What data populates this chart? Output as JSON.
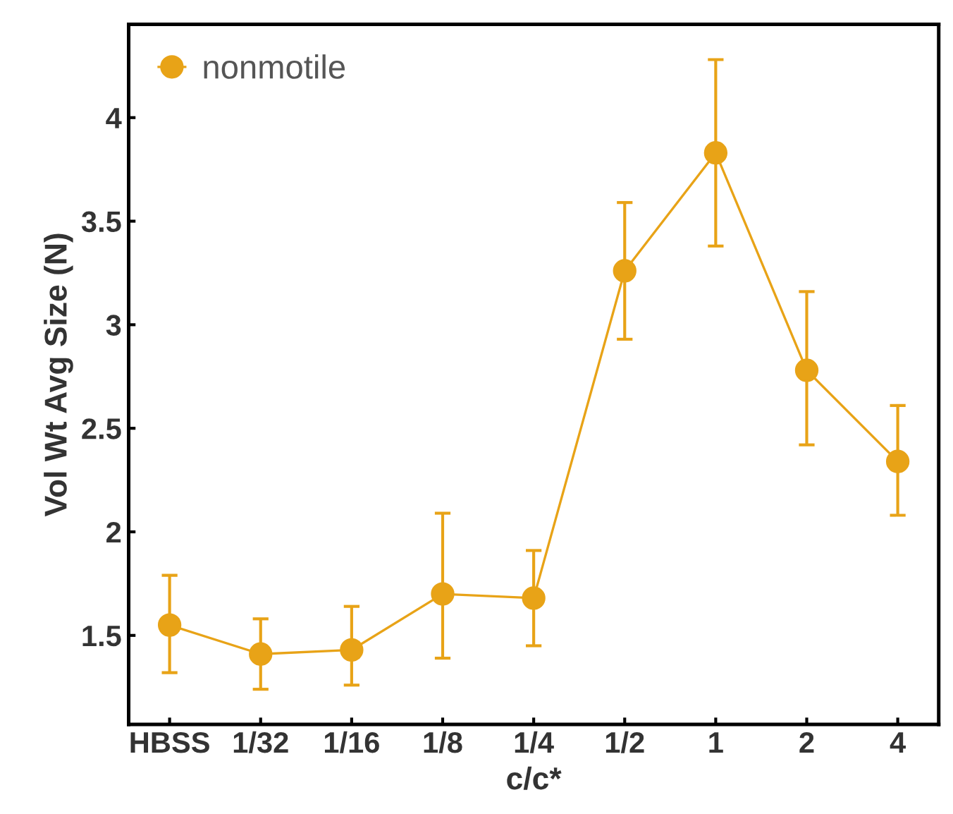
{
  "chart_data": {
    "type": "line",
    "xlabel": "c/c*",
    "ylabel": "Vol Wt Avg Size (N)",
    "categories": [
      "HBSS",
      "1/32",
      "1/16",
      "1/8",
      "1/4",
      "1/2",
      "1",
      "2",
      "4"
    ],
    "series": [
      {
        "name": "nonmotile",
        "color": "#e8a317",
        "values": [
          1.55,
          1.41,
          1.43,
          1.7,
          1.68,
          3.26,
          3.83,
          2.78,
          2.34
        ],
        "errors": [
          [
            1.32,
            1.79
          ],
          [
            1.24,
            1.58
          ],
          [
            1.26,
            1.64
          ],
          [
            1.39,
            2.09
          ],
          [
            1.45,
            1.91
          ],
          [
            2.93,
            3.59
          ],
          [
            3.38,
            4.28
          ],
          [
            2.42,
            3.16
          ],
          [
            2.08,
            2.61
          ]
        ]
      }
    ],
    "ylim": [
      1.07,
      4.45
    ],
    "yticks": [
      1.5,
      2,
      2.5,
      3,
      3.5,
      4
    ],
    "marker": "circle",
    "line_style": "solid",
    "legend": "top left",
    "grid": false
  }
}
